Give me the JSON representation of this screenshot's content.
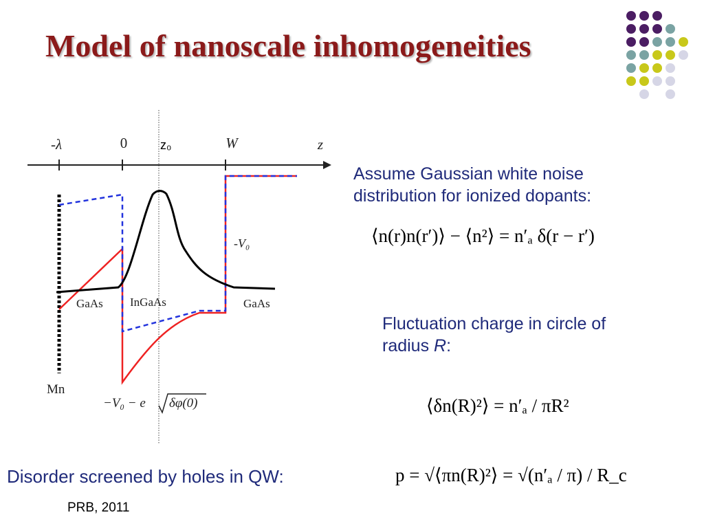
{
  "title": "Model of nanoscale inhomogeneities",
  "decoration": {
    "dot_colors": [
      "#4b1d63",
      "#7aa3a3",
      "#c8c81a",
      "#d6d6e6"
    ]
  },
  "diagram": {
    "axis_labels": {
      "minus_lambda": "-λ",
      "zero": "0",
      "z0": "z₀",
      "w": "W",
      "z": "z"
    },
    "region_labels": {
      "left": "GaAs",
      "middle": "InGaAs",
      "right": "GaAs"
    },
    "mn_label": "Mn",
    "v0_label": "-V₀",
    "bottom_label_prefix": "−V₀ − e",
    "bottom_label_root": "δφ(0)",
    "colors": {
      "red_curve": "#ee2222",
      "blue_dashed": "#2233dd",
      "black_curve": "#000000"
    }
  },
  "text": {
    "assume_line1": "Assume Gaussian white noise",
    "assume_line2": "distribution for ionized dopants:",
    "fluct_line1": "Fluctuation charge in circle of",
    "fluct_line2_prefix": "radius ",
    "fluct_line2_var": "R",
    "fluct_line2_suffix": ":",
    "disorder": "Disorder screened by holes in QW:",
    "source": "PRB, 2011"
  },
  "formulas": {
    "f1": "⟨n(r)n(r′)⟩ − ⟨n²⟩ = n′ₐ δ(r − r′)",
    "f2": "⟨δn(R)²⟩ = n′ₐ / πR²",
    "f3": "p = √⟨πn(R)²⟩ = √(n′ₐ / π) / R_c"
  }
}
